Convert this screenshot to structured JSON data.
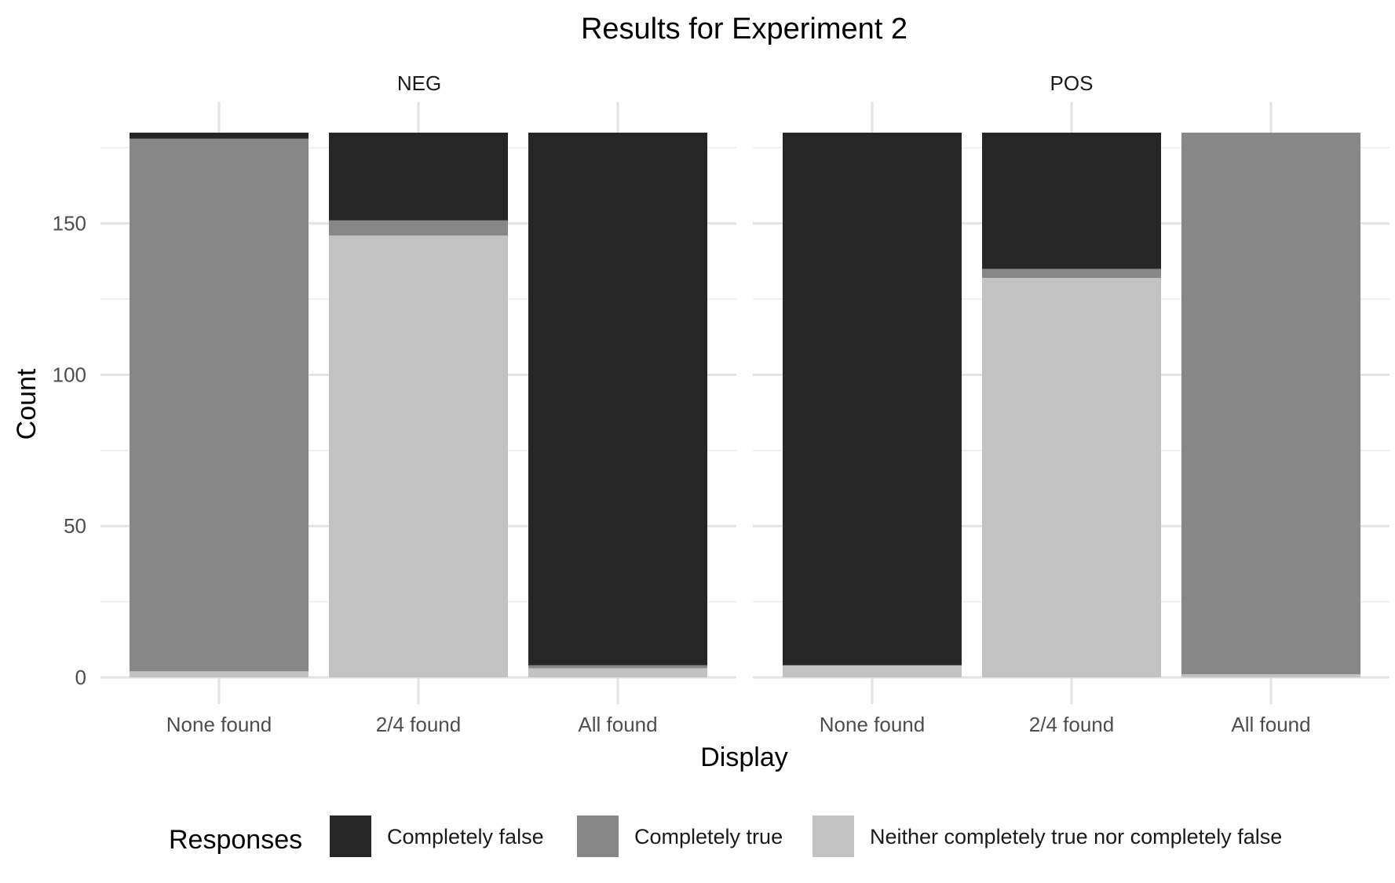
{
  "chart_data": {
    "type": "bar",
    "stacked": true,
    "title": "Results for Experiment 2",
    "xlabel": "Display",
    "ylabel": "Count",
    "ylim": [
      0,
      180
    ],
    "yticks": [
      0,
      50,
      100,
      150
    ],
    "grid": true,
    "legend": {
      "title": "Responses",
      "position": "bottom"
    },
    "categories": [
      "None found",
      "2/4 found",
      "All found"
    ],
    "facets": [
      "NEG",
      "POS"
    ],
    "series": [
      {
        "name": "Completely false",
        "color": "#262626",
        "values": {
          "NEG": [
            2,
            29,
            176
          ],
          "POS": [
            176,
            45,
            0
          ]
        }
      },
      {
        "name": "Completely true",
        "color": "#878787",
        "values": {
          "NEG": [
            176,
            5,
            1
          ],
          "POS": [
            0,
            3,
            179
          ]
        }
      },
      {
        "name": "Neither completely true nor completely false",
        "color": "#c2c2c2",
        "values": {
          "NEG": [
            2,
            146,
            3
          ],
          "POS": [
            4,
            132,
            1
          ]
        }
      }
    ]
  }
}
